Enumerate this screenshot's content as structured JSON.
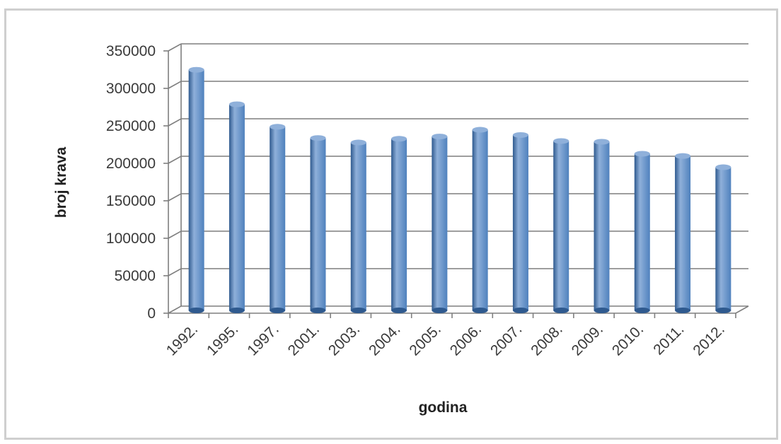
{
  "chart_data": {
    "type": "bar",
    "title": "",
    "xlabel": "godina",
    "ylabel": "broj krava",
    "categories": [
      "1992.",
      "1995.",
      "1997.",
      "2001.",
      "2003.",
      "2004.",
      "2005.",
      "2006.",
      "2007.",
      "2008.",
      "2009.",
      "2010.",
      "2011.",
      "2012."
    ],
    "values": [
      321000,
      275000,
      245000,
      230000,
      224000,
      229000,
      232000,
      241000,
      234000,
      226000,
      225000,
      209000,
      206000,
      191000
    ],
    "ylim": [
      0,
      350000
    ],
    "yticks": [
      "0",
      "50000",
      "100000",
      "150000",
      "200000",
      "250000",
      "300000",
      "350000"
    ],
    "grid": true,
    "legend": "none",
    "style": "3d-cylinder",
    "colors": {
      "bar": "#4f81bd",
      "bar_dark": "#2f5a8f",
      "bar_light": "#8fb0da",
      "grid": "#7f7f7f",
      "text": "#3a3a3a"
    }
  }
}
